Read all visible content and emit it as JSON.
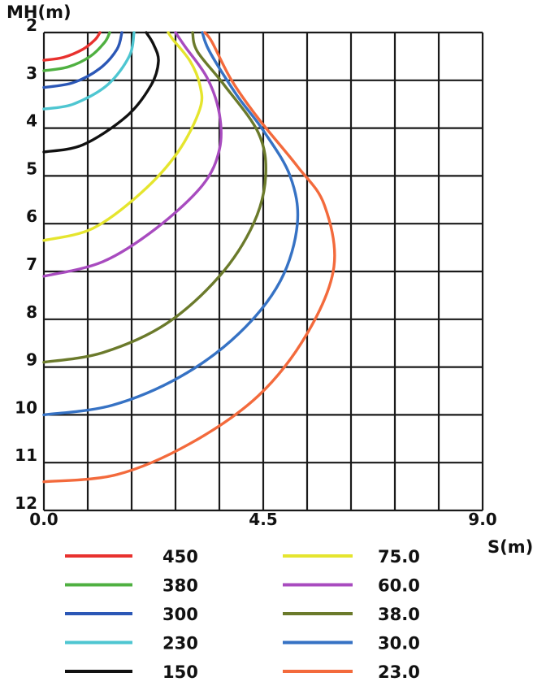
{
  "chart_data": {
    "type": "line",
    "xlabel": "S(m)",
    "ylabel": "MH(m)",
    "xlim": [
      0,
      9
    ],
    "ylim": [
      2,
      12
    ],
    "y_inverted": true,
    "grid": true,
    "x_ticks": [
      "0.0",
      "4.5",
      "9.0"
    ],
    "y_ticks": [
      "2",
      "3",
      "4",
      "5",
      "6",
      "7",
      "8",
      "9",
      "10",
      "11",
      "12"
    ],
    "legend_placement": "bottom",
    "series": [
      {
        "name": "450",
        "color": "#e8312e",
        "points": [
          [
            0.0,
            2.58
          ],
          [
            0.4,
            2.52
          ],
          [
            0.8,
            2.35
          ],
          [
            1.05,
            2.15
          ],
          [
            1.15,
            2.0
          ]
        ]
      },
      {
        "name": "380",
        "color": "#4fb041",
        "points": [
          [
            0.0,
            2.8
          ],
          [
            0.5,
            2.72
          ],
          [
            0.95,
            2.5
          ],
          [
            1.25,
            2.2
          ],
          [
            1.35,
            2.0
          ]
        ]
      },
      {
        "name": "300",
        "color": "#2b57b6",
        "points": [
          [
            0.0,
            3.15
          ],
          [
            0.6,
            3.05
          ],
          [
            1.15,
            2.75
          ],
          [
            1.5,
            2.35
          ],
          [
            1.6,
            2.0
          ]
        ]
      },
      {
        "name": "230",
        "color": "#4ec6d1",
        "points": [
          [
            0.0,
            3.6
          ],
          [
            0.6,
            3.5
          ],
          [
            1.3,
            3.1
          ],
          [
            1.75,
            2.5
          ],
          [
            1.85,
            2.0
          ]
        ]
      },
      {
        "name": "150",
        "color": "#111111",
        "points": [
          [
            0.0,
            4.5
          ],
          [
            0.8,
            4.35
          ],
          [
            1.7,
            3.75
          ],
          [
            2.2,
            3.1
          ],
          [
            2.35,
            2.6
          ],
          [
            2.25,
            2.25
          ],
          [
            2.1,
            2.0
          ]
        ]
      },
      {
        "name": "75.0",
        "color": "#e5e52e",
        "points": [
          [
            0.0,
            6.35
          ],
          [
            1.0,
            6.1
          ],
          [
            2.0,
            5.35
          ],
          [
            2.75,
            4.5
          ],
          [
            3.2,
            3.6
          ],
          [
            3.2,
            3.1
          ],
          [
            3.0,
            2.6
          ],
          [
            2.65,
            2.15
          ],
          [
            2.55,
            2.0
          ]
        ]
      },
      {
        "name": "60.0",
        "color": "#a84bbf",
        "points": [
          [
            0.0,
            7.1
          ],
          [
            1.2,
            6.8
          ],
          [
            2.3,
            6.1
          ],
          [
            3.25,
            5.2
          ],
          [
            3.6,
            4.45
          ],
          [
            3.6,
            3.7
          ],
          [
            3.35,
            2.95
          ],
          [
            2.9,
            2.3
          ],
          [
            2.7,
            2.0
          ]
        ]
      },
      {
        "name": "38.0",
        "color": "#6b7a2b",
        "points": [
          [
            0.0,
            8.9
          ],
          [
            1.2,
            8.7
          ],
          [
            2.5,
            8.1
          ],
          [
            3.6,
            7.1
          ],
          [
            4.3,
            6.0
          ],
          [
            4.55,
            5.0
          ],
          [
            4.4,
            4.1
          ],
          [
            3.7,
            3.1
          ],
          [
            3.15,
            2.4
          ],
          [
            3.05,
            2.0
          ]
        ]
      },
      {
        "name": "30.0",
        "color": "#3672c4",
        "points": [
          [
            0.0,
            10.0
          ],
          [
            1.4,
            9.8
          ],
          [
            2.8,
            9.2
          ],
          [
            4.0,
            8.3
          ],
          [
            4.85,
            7.2
          ],
          [
            5.2,
            6.0
          ],
          [
            5.05,
            5.0
          ],
          [
            4.5,
            4.05
          ],
          [
            3.95,
            3.3
          ],
          [
            3.4,
            2.4
          ],
          [
            3.25,
            2.0
          ]
        ]
      },
      {
        "name": "23.0",
        "color": "#f36a3c",
        "points": [
          [
            0.0,
            11.4
          ],
          [
            1.5,
            11.25
          ],
          [
            3.0,
            10.6
          ],
          [
            4.4,
            9.6
          ],
          [
            5.4,
            8.3
          ],
          [
            5.95,
            6.9
          ],
          [
            5.75,
            5.6
          ],
          [
            5.2,
            4.8
          ],
          [
            4.4,
            3.8
          ],
          [
            3.85,
            3.0
          ],
          [
            3.45,
            2.2
          ],
          [
            3.3,
            2.0
          ]
        ]
      }
    ]
  }
}
